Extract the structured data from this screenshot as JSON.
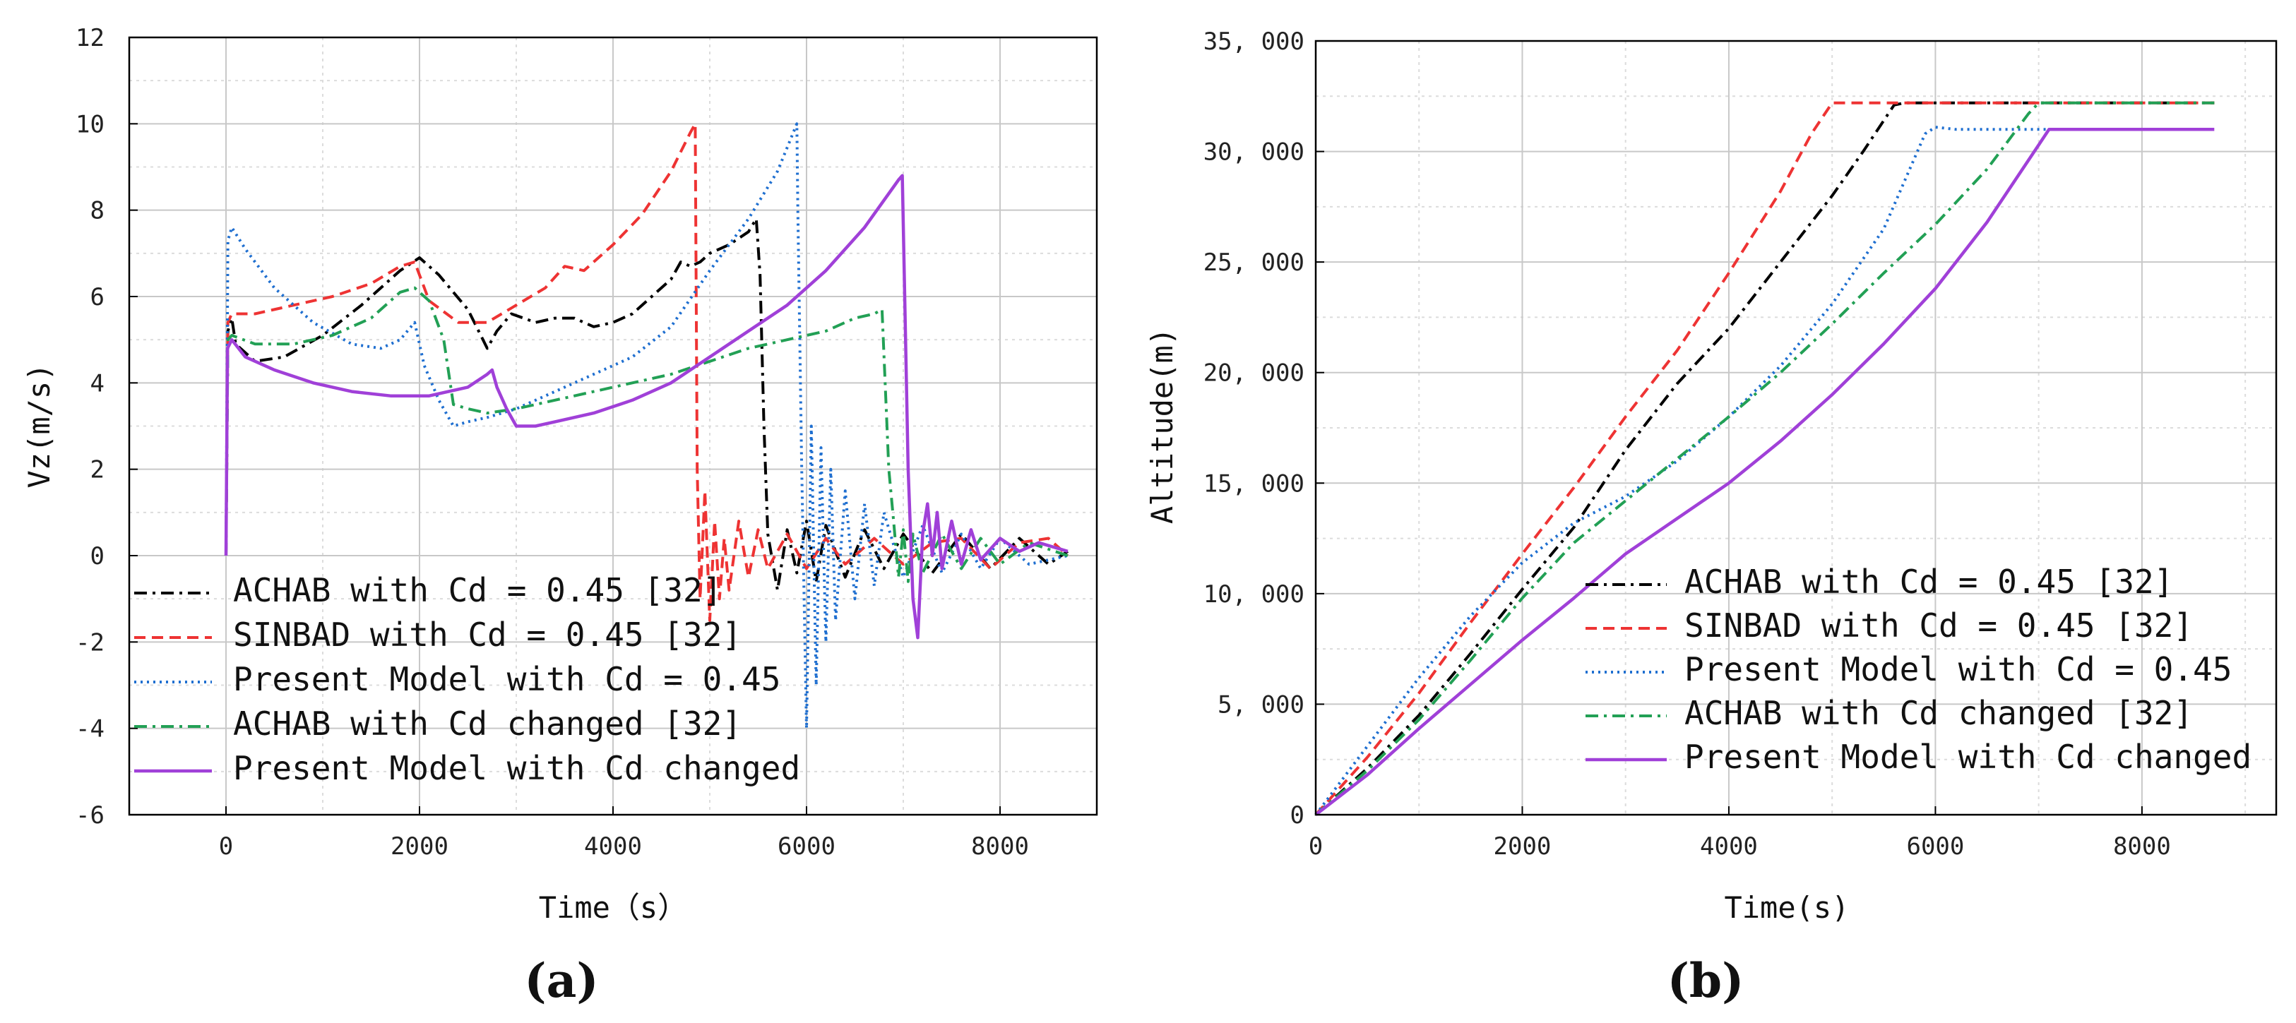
{
  "chart_data": [
    {
      "type": "line",
      "panel_label": "(a)",
      "xlabel": "Time（s）",
      "ylabel": "Vz(m/s)",
      "xlim": [
        -1000,
        9000
      ],
      "ylim": [
        -6,
        12
      ],
      "xticks": [
        "0",
        "2000",
        "4000",
        "6000",
        "8000"
      ],
      "yticks": [
        "-6",
        "-4",
        "-2",
        "0",
        "2",
        "4",
        "6",
        "8",
        "10",
        "12"
      ],
      "legend_position": "bottom-left",
      "series": [
        {
          "name": "ACHAB with Cd = 0.45 [32]",
          "color": "#000000",
          "dash": "dashdot",
          "x": [
            0,
            20,
            60,
            100,
            300,
            600,
            1000,
            1400,
            1800,
            2000,
            2200,
            2500,
            2700,
            2800,
            2950,
            3200,
            3400,
            3600,
            3800,
            4000,
            4200,
            4400,
            4600,
            4700,
            4800,
            4900,
            5000,
            5200,
            5400,
            5480,
            5520,
            5560,
            5600,
            5700,
            5800,
            5900,
            6000,
            6100,
            6200,
            6400,
            6600,
            6800,
            7000,
            7300,
            7600,
            7900,
            8200,
            8500,
            8700
          ],
          "y": [
            0,
            5.2,
            5.5,
            4.9,
            4.5,
            4.6,
            5.1,
            5.8,
            6.6,
            6.9,
            6.5,
            5.7,
            4.8,
            5.2,
            5.6,
            5.4,
            5.5,
            5.5,
            5.3,
            5.4,
            5.6,
            6.0,
            6.4,
            6.8,
            6.7,
            6.8,
            7.0,
            7.2,
            7.5,
            7.8,
            6.5,
            3.0,
            0.5,
            -0.8,
            0.6,
            -0.4,
            0.8,
            -0.6,
            0.7,
            -0.5,
            0.6,
            -0.3,
            0.5,
            -0.4,
            0.5,
            -0.3,
            0.4,
            -0.2,
            0.1
          ]
        },
        {
          "name": "SINBAD with Cd = 0.45 [32]",
          "color": "#ee3333",
          "dash": "dashed",
          "x": [
            0,
            20,
            60,
            300,
            700,
            1100,
            1500,
            1800,
            1950,
            2100,
            2400,
            2700,
            3000,
            3300,
            3500,
            3700,
            4000,
            4300,
            4600,
            4800,
            4850,
            4870,
            4900,
            4950,
            5000,
            5050,
            5100,
            5150,
            5200,
            5300,
            5400,
            5500,
            5600,
            5800,
            6000,
            6200,
            6400,
            6700,
            7000,
            7300,
            7600,
            7900,
            8200,
            8500,
            8700
          ],
          "y": [
            0,
            5.4,
            5.6,
            5.6,
            5.8,
            6.0,
            6.3,
            6.7,
            6.8,
            5.9,
            5.4,
            5.4,
            5.8,
            6.2,
            6.7,
            6.6,
            7.2,
            7.9,
            8.9,
            9.8,
            10.0,
            2.0,
            -1.0,
            1.5,
            -1.5,
            0.8,
            -1.0,
            0.4,
            -0.8,
            0.8,
            -0.5,
            0.6,
            -0.3,
            0.5,
            -0.3,
            0.4,
            -0.2,
            0.4,
            -0.2,
            0.3,
            0.4,
            -0.3,
            0.3,
            0.4,
            0.0
          ]
        },
        {
          "name": "Present Model with Cd = 0.45",
          "color": "#1f6fd0",
          "dash": "dotted",
          "x": [
            0,
            20,
            60,
            200,
            500,
            900,
            1300,
            1600,
            1800,
            1950,
            2050,
            2200,
            2350,
            2500,
            2700,
            3000,
            3400,
            3800,
            4200,
            4600,
            5000,
            5400,
            5700,
            5900,
            5910,
            5950,
            6000,
            6050,
            6100,
            6150,
            6200,
            6250,
            6300,
            6400,
            6500,
            6600,
            6700,
            6800,
            7000,
            7200,
            7400,
            7600,
            7800,
            8000,
            8300,
            8700
          ],
          "y": [
            0,
            7.3,
            7.6,
            7.1,
            6.2,
            5.4,
            4.9,
            4.8,
            5.0,
            5.4,
            4.4,
            3.6,
            3.0,
            3.1,
            3.2,
            3.4,
            3.8,
            4.2,
            4.6,
            5.3,
            6.6,
            7.8,
            8.9,
            10.0,
            8.0,
            2.0,
            -4.0,
            3.0,
            -3.0,
            2.5,
            -2.0,
            2.0,
            -1.5,
            1.5,
            -1.0,
            1.2,
            -0.7,
            1.0,
            -0.5,
            0.7,
            -0.4,
            0.5,
            -0.3,
            0.4,
            -0.2,
            0.0
          ]
        },
        {
          "name": "ACHAB with Cd changed [32]",
          "color": "#22a055",
          "dash": "dashdot",
          "x": [
            0,
            20,
            60,
            300,
            700,
            1100,
            1500,
            1800,
            1950,
            2100,
            2250,
            2350,
            2500,
            2700,
            3000,
            3400,
            3800,
            4200,
            4600,
            5000,
            5400,
            5800,
            6200,
            6500,
            6700,
            6780,
            6850,
            6900,
            6950,
            7000,
            7050,
            7100,
            7200,
            7400,
            7600,
            7800,
            8000,
            8300,
            8700
          ],
          "y": [
            0,
            5.0,
            5.1,
            4.9,
            4.9,
            5.1,
            5.5,
            6.1,
            6.2,
            5.9,
            5.0,
            3.5,
            3.4,
            3.3,
            3.4,
            3.6,
            3.8,
            4.0,
            4.2,
            4.5,
            4.8,
            5.0,
            5.2,
            5.5,
            5.6,
            5.7,
            2.0,
            0.8,
            -0.5,
            0.6,
            -0.6,
            0.5,
            -0.4,
            0.5,
            -0.3,
            0.4,
            -0.2,
            0.3,
            0.0
          ]
        },
        {
          "name": "Present Model with Cd changed",
          "color": "#a040d8",
          "dash": "solid",
          "x": [
            0,
            15,
            60,
            200,
            500,
            900,
            1300,
            1700,
            2100,
            2500,
            2700,
            2750,
            2800,
            2900,
            3000,
            3200,
            3400,
            3800,
            4200,
            4600,
            5000,
            5400,
            5800,
            6200,
            6600,
            6950,
            6990,
            7050,
            7100,
            7150,
            7200,
            7250,
            7300,
            7350,
            7400,
            7500,
            7600,
            7700,
            7800,
            8000,
            8200,
            8400,
            8700
          ],
          "y": [
            0,
            4.8,
            5.0,
            4.6,
            4.3,
            4.0,
            3.8,
            3.7,
            3.7,
            3.9,
            4.2,
            4.3,
            3.9,
            3.4,
            3.0,
            3.0,
            3.1,
            3.3,
            3.6,
            4.0,
            4.6,
            5.2,
            5.8,
            6.6,
            7.6,
            8.7,
            8.8,
            2.0,
            -1.0,
            -1.9,
            0.5,
            1.2,
            0.0,
            1.0,
            -0.3,
            0.8,
            -0.2,
            0.6,
            -0.1,
            0.4,
            0.1,
            0.3,
            0.1
          ]
        }
      ]
    },
    {
      "type": "line",
      "panel_label": "(b)",
      "xlabel": "Time(s)",
      "ylabel": "Altitude(m)",
      "xlim": [
        0,
        9300
      ],
      "ylim": [
        0,
        35000
      ],
      "xticks": [
        "0",
        "2000",
        "4000",
        "6000",
        "8000"
      ],
      "yticks": [
        "0",
        "5, 000",
        "10, 000",
        "15, 000",
        "20, 000",
        "25, 000",
        "30, 000",
        "35, 000"
      ],
      "legend_position": "bottom-right",
      "series": [
        {
          "name": "ACHAB with Cd = 0.45 [32]",
          "color": "#000000",
          "dash": "dashdot",
          "x": [
            0,
            500,
            1000,
            1500,
            2000,
            2500,
            3000,
            3500,
            4000,
            4500,
            5000,
            5300,
            5600,
            5700,
            8700
          ],
          "y": [
            0,
            2100,
            4500,
            7300,
            10200,
            13000,
            16500,
            19500,
            22000,
            25000,
            28000,
            30000,
            32100,
            32200,
            32200
          ]
        },
        {
          "name": "SINBAD with Cd = 0.45 [32]",
          "color": "#ee3333",
          "dash": "dashed",
          "x": [
            0,
            500,
            1000,
            1500,
            2000,
            2500,
            3000,
            3500,
            4000,
            4500,
            4800,
            5000,
            8700
          ],
          "y": [
            0,
            2600,
            5500,
            8700,
            11800,
            14800,
            18000,
            21000,
            24500,
            28200,
            30800,
            32200,
            32200
          ]
        },
        {
          "name": "Present Model with Cd = 0.45",
          "color": "#1f6fd0",
          "dash": "dotted",
          "x": [
            0,
            500,
            1000,
            1500,
            2000,
            2500,
            3000,
            3500,
            4000,
            4500,
            5000,
            5500,
            5900,
            6000,
            6200,
            8700
          ],
          "y": [
            0,
            3100,
            6200,
            9000,
            11400,
            13200,
            14400,
            16000,
            18000,
            20300,
            23100,
            26500,
            30800,
            31100,
            31000,
            31000
          ]
        },
        {
          "name": "ACHAB with Cd changed [32]",
          "color": "#22a055",
          "dash": "dashdot",
          "x": [
            0,
            500,
            1000,
            1500,
            2000,
            2500,
            3000,
            3500,
            4000,
            4500,
            5000,
            5500,
            6000,
            6500,
            6900,
            7000,
            8700
          ],
          "y": [
            0,
            2000,
            4300,
            7000,
            9800,
            12300,
            14200,
            16100,
            18000,
            20000,
            22200,
            24500,
            26700,
            29200,
            31700,
            32200,
            32200
          ]
        },
        {
          "name": "Present Model with Cd changed",
          "color": "#a040d8",
          "dash": "solid",
          "x": [
            0,
            500,
            1000,
            1500,
            2000,
            2500,
            3000,
            3500,
            4000,
            4500,
            5000,
            5500,
            6000,
            6500,
            7000,
            7100,
            8700
          ],
          "y": [
            0,
            1800,
            3900,
            5900,
            7900,
            9800,
            11800,
            13400,
            15000,
            16900,
            19000,
            21300,
            23800,
            26800,
            30300,
            31000,
            31000
          ]
        }
      ]
    }
  ]
}
